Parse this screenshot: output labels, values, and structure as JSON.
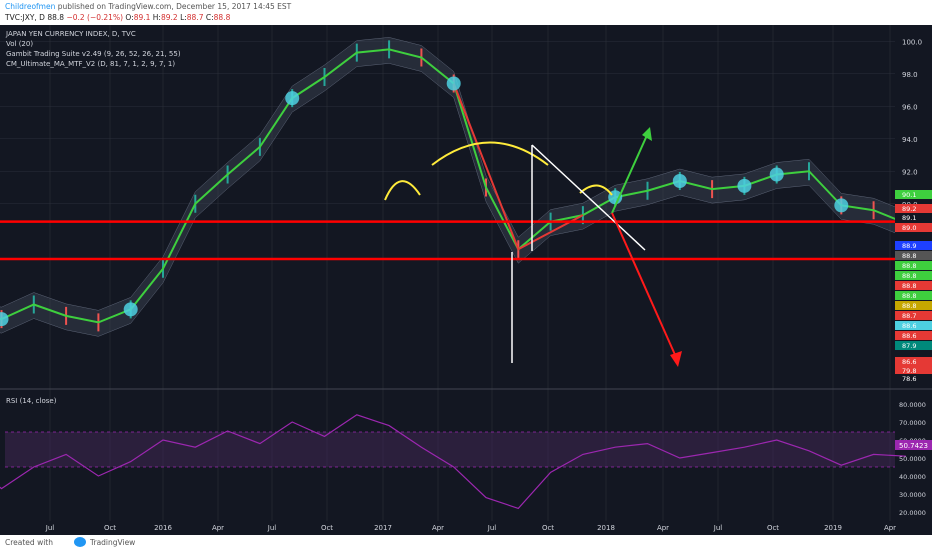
{
  "header": {
    "author": "Childreofmen",
    "published_text": " published on TradingView.com, December 15, 2017 14:45 EST",
    "symbol": "TVC:JXY, D",
    "last": "88.8",
    "change": "−0.2 (−0.21%)",
    "ohlc_label_o": "O:",
    "ohlc_o": "89.1",
    "ohlc_label_h": "H:",
    "ohlc_h": "89.2",
    "ohlc_label_l": "L:",
    "ohlc_l": "88.7",
    "ohlc_label_c": "C:",
    "ohlc_c": "88.8"
  },
  "legend": {
    "line1": "JAPAN YEN CURRENCY INDEX, D, TVC",
    "line2": "Vol (20)",
    "line3": "Gambit Trading Suite v2.49 (9, 26, 52, 26, 21, 55)",
    "line4": "CM_Ultimate_MA_MTF_V2 (D, 81, 7, 1, 2, 9, 7, 1)"
  },
  "rsi": {
    "label": "RSI (14, close)",
    "current_label": "50.7423",
    "ticks": [
      "80.0000",
      "70.0000",
      "60.0000",
      "50.0000",
      "40.0000",
      "30.0000",
      "20.0000"
    ]
  },
  "footer": {
    "created": "Created with",
    "brand": "TradingView"
  },
  "colors": {
    "background": "#131722",
    "grid": "#2a2e39",
    "support_line": "#ff0000",
    "ma_green": "#3ecf3e",
    "ma_red": "#e53935",
    "annotation_yellow": "#ffeb3b",
    "rsi_line": "#9c27b0",
    "marker_cyan": "#4dd0e1"
  },
  "chart_data": {
    "type": "line",
    "title": "JAPAN YEN CURRENCY INDEX, D, TVC",
    "x_ticks": [
      "Jul",
      "Oct",
      "2016",
      "Apr",
      "Jul",
      "Oct",
      "2017",
      "Apr",
      "Jul",
      "Oct",
      "2018",
      "Apr",
      "Jul",
      "Oct",
      "2019",
      "Apr"
    ],
    "y_ticks": [
      "100.0",
      "98.0",
      "96.0",
      "94.0",
      "92.0",
      "90.0"
    ],
    "ylim": [
      78.6,
      101.0
    ],
    "right_labels": [
      {
        "text": "90.1",
        "color": "#3ecf3e"
      },
      {
        "text": "89.2",
        "color": "#e53935"
      },
      {
        "text": "89.1",
        "color": "#131722"
      },
      {
        "text": "89.0",
        "color": "#e53935"
      },
      {
        "text": "88.9",
        "color": "#1e40ff"
      },
      {
        "text": "88.8",
        "color": "#555555"
      },
      {
        "text": "88.8",
        "color": "#3ecf3e"
      },
      {
        "text": "88.8",
        "color": "#3ecf3e"
      },
      {
        "text": "88.8",
        "color": "#e53935"
      },
      {
        "text": "88.8",
        "color": "#3ecf3e"
      },
      {
        "text": "88.8",
        "color": "#c6a700"
      },
      {
        "text": "88.7",
        "color": "#e53935"
      },
      {
        "text": "88.6",
        "color": "#4dd0e1"
      },
      {
        "text": "88.6",
        "color": "#e53935"
      },
      {
        "text": "87.9",
        "color": "#00897b"
      },
      {
        "text": "86.6",
        "color": "#e53935"
      },
      {
        "text": "79.8",
        "color": "#e53935"
      },
      {
        "text": "78.6",
        "color": "#131722"
      }
    ],
    "series": [
      {
        "name": "TVC:JXY",
        "x": [
          "2015-05",
          "2015-06",
          "2015-07",
          "2015-08",
          "2015-09",
          "2015-10",
          "2015-11",
          "2015-12",
          "2016-01",
          "2016-02",
          "2016-03",
          "2016-04",
          "2016-05",
          "2016-06",
          "2016-07",
          "2016-08",
          "2016-09",
          "2016-10",
          "2016-11",
          "2016-12",
          "2017-01",
          "2017-02",
          "2017-03",
          "2017-04",
          "2017-05",
          "2017-06",
          "2017-07",
          "2017-08",
          "2017-09",
          "2017-10",
          "2017-11",
          "2017-12"
        ],
        "values": [
          84.0,
          83.6,
          83.3,
          82.9,
          83.8,
          83.1,
          82.7,
          83.5,
          86.0,
          90.0,
          91.8,
          93.5,
          96.5,
          97.8,
          99.3,
          99.5,
          99.0,
          97.4,
          91.0,
          87.2,
          88.9,
          89.3,
          90.4,
          90.8,
          91.4,
          90.9,
          91.1,
          91.8,
          92.0,
          89.9,
          89.6,
          88.8
        ]
      }
    ],
    "rsi_series": {
      "name": "RSI (14, close)",
      "ylim": [
        15,
        85
      ],
      "values": [
        52,
        36,
        48,
        33,
        45,
        52,
        40,
        48,
        60,
        56,
        65,
        58,
        70,
        62,
        74,
        68,
        56,
        45,
        28,
        22,
        42,
        52,
        56,
        58,
        50,
        53,
        56,
        60,
        54,
        46,
        52,
        51
      ]
    }
  }
}
